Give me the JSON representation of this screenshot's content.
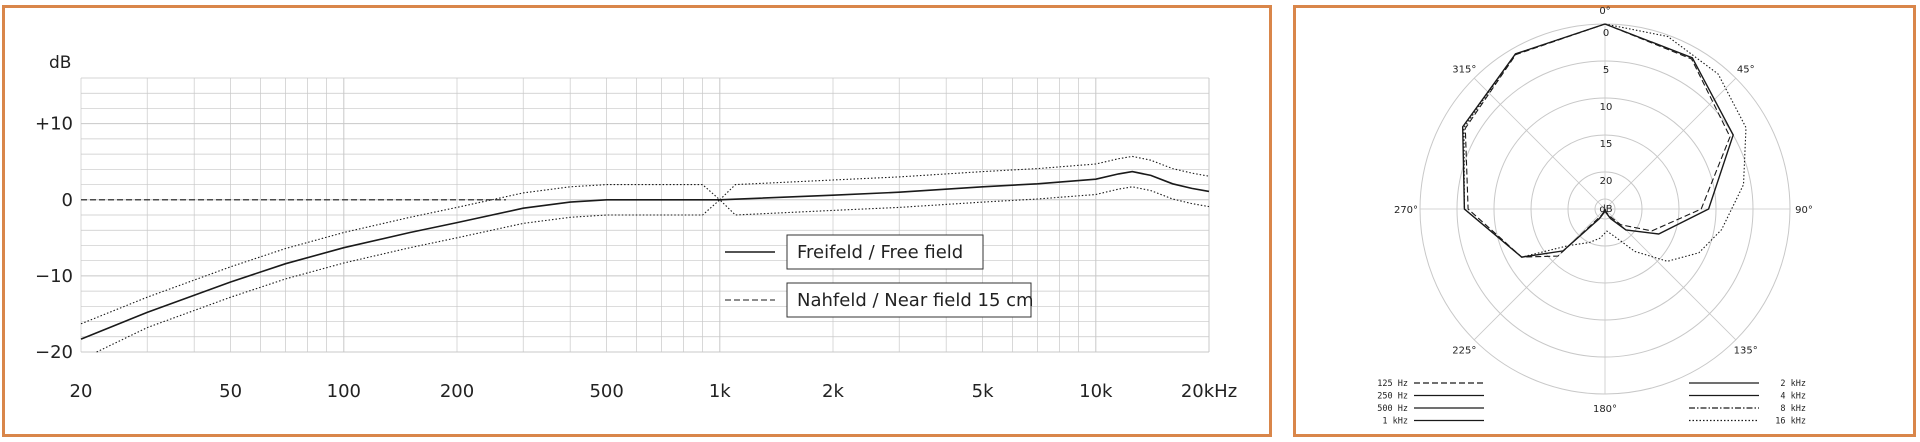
{
  "colors": {
    "frame": "#d9864a",
    "grid": "#c8c8c8",
    "curve": "#1a1a1a"
  },
  "chart_data": [
    {
      "type": "line",
      "ylabel": "dB",
      "xlabel": "",
      "xscale": "log",
      "xlim": [
        20,
        20000
      ],
      "ylim": [
        -20,
        16
      ],
      "x_tick_labels": [
        {
          "value": 20,
          "label": "20"
        },
        {
          "value": 50,
          "label": "50"
        },
        {
          "value": 100,
          "label": "100"
        },
        {
          "value": 200,
          "label": "200"
        },
        {
          "value": 500,
          "label": "500"
        },
        {
          "value": 1000,
          "label": "1k"
        },
        {
          "value": 2000,
          "label": "2k"
        },
        {
          "value": 5000,
          "label": "5k"
        },
        {
          "value": 10000,
          "label": "10k"
        },
        {
          "value": 20000,
          "label": "20kHz"
        }
      ],
      "y_tick_labels": [
        {
          "value": 10,
          "label": "+10"
        },
        {
          "value": 0,
          "label": "0"
        },
        {
          "value": -10,
          "label": "−10"
        },
        {
          "value": -20,
          "label": "−20"
        }
      ],
      "grid": true,
      "legend_position": "center-right",
      "series": [
        {
          "name": "Freifeld / Free  field",
          "style": "solid",
          "points": [
            [
              20,
              -18.3
            ],
            [
              30,
              -14.8
            ],
            [
              50,
              -10.8
            ],
            [
              70,
              -8.4
            ],
            [
              100,
              -6.3
            ],
            [
              150,
              -4.3
            ],
            [
              200,
              -3
            ],
            [
              300,
              -1.1
            ],
            [
              400,
              -0.3
            ],
            [
              500,
              0
            ],
            [
              700,
              0
            ],
            [
              1000,
              0
            ],
            [
              2000,
              0.6
            ],
            [
              3000,
              1
            ],
            [
              5000,
              1.7
            ],
            [
              7000,
              2.1
            ],
            [
              10000,
              2.7
            ],
            [
              11500,
              3.4
            ],
            [
              12500,
              3.7
            ],
            [
              14000,
              3.2
            ],
            [
              16000,
              2.1
            ],
            [
              18000,
              1.5
            ],
            [
              20000,
              1.1
            ]
          ]
        },
        {
          "name": "Nahfeld / Near field 15 cm",
          "style": "dashed",
          "points": [
            [
              20,
              0
            ],
            [
              270,
              0
            ]
          ]
        },
        {
          "name": "tolerance upper",
          "style": "dotted",
          "points": [
            [
              20,
              -16.3
            ],
            [
              30,
              -12.8
            ],
            [
              50,
              -8.8
            ],
            [
              70,
              -6.4
            ],
            [
              100,
              -4.3
            ],
            [
              150,
              -2.3
            ],
            [
              200,
              -1
            ],
            [
              300,
              0.9
            ],
            [
              400,
              1.7
            ],
            [
              500,
              2
            ],
            [
              900,
              2
            ],
            [
              1000,
              0
            ],
            [
              1100,
              2
            ],
            [
              2000,
              2.6
            ],
            [
              3000,
              3
            ],
            [
              5000,
              3.7
            ],
            [
              7000,
              4.1
            ],
            [
              10000,
              4.7
            ],
            [
              11500,
              5.4
            ],
            [
              12500,
              5.7
            ],
            [
              14000,
              5.2
            ],
            [
              16000,
              4.1
            ],
            [
              18000,
              3.5
            ],
            [
              20000,
              3.1
            ]
          ]
        },
        {
          "name": "tolerance lower",
          "style": "dotted",
          "points": [
            [
              22,
              -20
            ],
            [
              30,
              -16.8
            ],
            [
              50,
              -12.8
            ],
            [
              70,
              -10.4
            ],
            [
              100,
              -8.3
            ],
            [
              150,
              -6.3
            ],
            [
              200,
              -5
            ],
            [
              300,
              -3.1
            ],
            [
              400,
              -2.3
            ],
            [
              500,
              -2
            ],
            [
              900,
              -2
            ],
            [
              1000,
              0
            ],
            [
              1100,
              -2
            ],
            [
              2000,
              -1.4
            ],
            [
              3000,
              -1
            ],
            [
              5000,
              -0.3
            ],
            [
              7000,
              0.1
            ],
            [
              10000,
              0.7
            ],
            [
              11500,
              1.4
            ],
            [
              12500,
              1.7
            ],
            [
              14000,
              1.2
            ],
            [
              16000,
              0.1
            ],
            [
              18000,
              -0.5
            ],
            [
              20000,
              -0.9
            ]
          ]
        }
      ]
    },
    {
      "type": "polar",
      "angle_labels": [
        {
          "deg": 0,
          "label": "0°"
        },
        {
          "deg": 45,
          "label": "45°"
        },
        {
          "deg": 90,
          "label": "90°"
        },
        {
          "deg": 135,
          "label": "135°"
        },
        {
          "deg": 180,
          "label": "180°"
        },
        {
          "deg": 225,
          "label": "225°"
        },
        {
          "deg": 270,
          "label": "270°"
        },
        {
          "deg": 315,
          "label": "315°"
        }
      ],
      "radial_labels": [
        "0",
        "5",
        "10",
        "15",
        "20",
        "dB"
      ],
      "rlim_db": [
        -25,
        0
      ],
      "legend_position": "bottom",
      "legend_left": [
        {
          "label": "125  Hz",
          "style": "dashed"
        },
        {
          "label": "250  Hz",
          "style": "solid"
        },
        {
          "label": "500  Hz",
          "style": "solid"
        },
        {
          "label": "1  kHz",
          "style": "solid"
        }
      ],
      "legend_right": [
        {
          "label": "2  kHz",
          "style": "solid"
        },
        {
          "label": "4  kHz",
          "style": "solid"
        },
        {
          "label": "8  kHz",
          "style": "dashdot"
        },
        {
          "label": "16  kHz",
          "style": "dotted"
        }
      ],
      "series": [
        {
          "name": "125  Hz",
          "style": "dashed",
          "points": [
            [
              0,
              0
            ],
            [
              30,
              -1.6
            ],
            [
              60,
              -5.5
            ],
            [
              90,
              -12
            ],
            [
              115,
              -18
            ],
            [
              135,
              -22
            ],
            [
              150,
              -24
            ],
            [
              170,
              -24.8
            ],
            [
              180,
              -25
            ],
            [
              190,
              -24.8
            ],
            [
              210,
              -24
            ],
            [
              225,
              -16
            ],
            [
              240,
              -12
            ],
            [
              270,
              -6.5
            ],
            [
              300,
              -3.2
            ],
            [
              330,
              -0.9
            ]
          ]
        },
        {
          "name": "1  kHz",
          "style": "solid",
          "points": [
            [
              0,
              0
            ],
            [
              30,
              -1.4
            ],
            [
              60,
              -5
            ],
            [
              90,
              -11
            ],
            [
              115,
              -17
            ],
            [
              135,
              -21
            ],
            [
              150,
              -23.5
            ],
            [
              170,
              -24.6
            ],
            [
              180,
              -25
            ],
            [
              190,
              -24.6
            ],
            [
              210,
              -23.5
            ],
            [
              225,
              -17
            ],
            [
              240,
              -12
            ],
            [
              270,
              -6
            ],
            [
              300,
              -2.8
            ],
            [
              330,
              -0.8
            ]
          ]
        },
        {
          "name": "16  kHz",
          "style": "dotted",
          "points": [
            [
              0,
              0
            ],
            [
              20,
              -0.2
            ],
            [
              40,
              -1.2
            ],
            [
              60,
              -3
            ],
            [
              80,
              -6
            ],
            [
              100,
              -9
            ],
            [
              115,
              -11
            ],
            [
              130,
              -14
            ],
            [
              145,
              -18
            ],
            [
              160,
              -21
            ],
            [
              175,
              -22
            ],
            [
              190,
              -21
            ],
            [
              205,
              -20
            ],
            [
              225,
              -18
            ],
            [
              240,
              -12
            ],
            [
              270,
              -6
            ],
            [
              300,
              -3
            ],
            [
              330,
              -0.8
            ]
          ]
        }
      ]
    }
  ]
}
